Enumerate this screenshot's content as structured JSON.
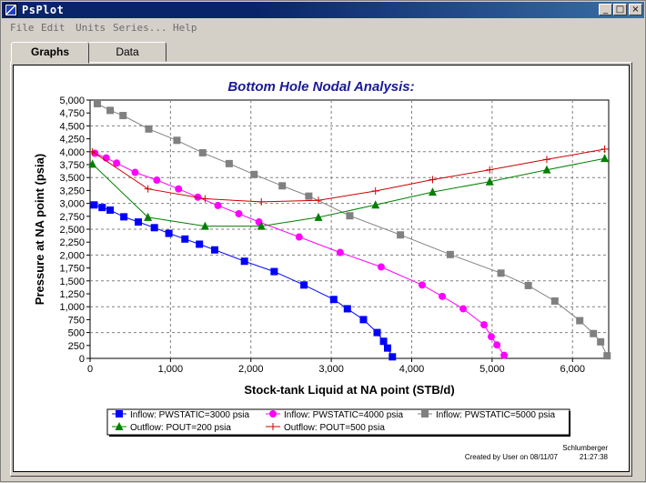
{
  "window": {
    "title": "PsPlot"
  },
  "menu": [
    "File",
    "Edit",
    "Units",
    "Series...",
    "Help"
  ],
  "tabs": [
    {
      "label": "Graphs",
      "active": true
    },
    {
      "label": "Data",
      "active": false
    }
  ],
  "footer": {
    "brand": "Schlumberger",
    "created": "Created by User on 08/11/07",
    "time": "21:27:38"
  },
  "chart_data": {
    "type": "line",
    "title": "Bottom Hole Nodal Analysis:",
    "xlabel": "Stock-tank Liquid at NA point (STB/d)",
    "ylabel": "Pressure at NA point (psia)",
    "xlim": [
      0,
      6450
    ],
    "ylim": [
      0,
      5000
    ],
    "xticks": [
      0,
      1000,
      2000,
      3000,
      4000,
      5000,
      6000
    ],
    "xtick_labels": [
      "0",
      "1,000",
      "2,000",
      "3,000",
      "4,000",
      "5,000",
      "6,000"
    ],
    "yticks": [
      0,
      250,
      500,
      750,
      1000,
      1250,
      1500,
      1750,
      2000,
      2250,
      2500,
      2750,
      3000,
      3250,
      3500,
      3750,
      4000,
      4250,
      4500,
      4750,
      5000
    ],
    "ytick_labels": [
      "0",
      "250",
      "500",
      "750",
      "1,000",
      "1,250",
      "1,500",
      "1,750",
      "2,000",
      "2,250",
      "2,500",
      "2,750",
      "3,000",
      "3,250",
      "3,500",
      "3,750",
      "4,000",
      "4,250",
      "4,500",
      "4,750",
      "5,000"
    ],
    "grid": true,
    "legend_position": "bottom",
    "series": [
      {
        "name": "Inflow: PWSTATIC=3000 psia",
        "color": "#0000ff",
        "marker": "square",
        "x": [
          50,
          150,
          250,
          420,
          600,
          800,
          980,
          1180,
          1360,
          1550,
          1920,
          2290,
          2660,
          3030,
          3200,
          3400,
          3570,
          3650,
          3700,
          3760
        ],
        "y": [
          2970,
          2920,
          2870,
          2740,
          2640,
          2530,
          2420,
          2310,
          2210,
          2100,
          1880,
          1680,
          1420,
          1140,
          960,
          750,
          500,
          330,
          200,
          30
        ]
      },
      {
        "name": "Inflow: PWSTATIC=4000 psia",
        "color": "#ff00ff",
        "marker": "circle",
        "x": [
          60,
          200,
          330,
          560,
          830,
          1100,
          1340,
          1590,
          1850,
          2100,
          2600,
          3110,
          3620,
          4130,
          4380,
          4640,
          4900,
          4990,
          5060,
          5150
        ],
        "y": [
          3970,
          3880,
          3780,
          3600,
          3450,
          3280,
          3120,
          2960,
          2800,
          2640,
          2350,
          2050,
          1770,
          1420,
          1200,
          960,
          650,
          420,
          260,
          60
        ]
      },
      {
        "name": "Inflow: PWSTATIC=5000 psia",
        "color": "#808080",
        "marker": "square",
        "x": [
          90,
          250,
          410,
          730,
          1080,
          1400,
          1730,
          2040,
          2390,
          2720,
          3230,
          3860,
          4480,
          5110,
          5450,
          5780,
          6090,
          6260,
          6350,
          6430
        ],
        "y": [
          4930,
          4800,
          4700,
          4440,
          4220,
          3980,
          3770,
          3560,
          3340,
          3140,
          2760,
          2390,
          2010,
          1650,
          1410,
          1110,
          730,
          480,
          320,
          50
        ]
      },
      {
        "name": "Outflow: POUT=200 psia",
        "color": "#008000",
        "marker": "triangle",
        "x": [
          30,
          720,
          1430,
          2130,
          2840,
          3550,
          4260,
          4970,
          5680,
          6400
        ],
        "y": [
          3760,
          2730,
          2560,
          2560,
          2730,
          2970,
          3220,
          3420,
          3650,
          3870
        ]
      },
      {
        "name": "Outflow: POUT=500 psia",
        "color": "#cc0000",
        "marker": "plus",
        "x": [
          30,
          720,
          1430,
          2130,
          2840,
          3550,
          4260,
          4970,
          5680,
          6400
        ],
        "y": [
          4000,
          3280,
          3090,
          3030,
          3060,
          3240,
          3460,
          3650,
          3850,
          4050
        ]
      }
    ]
  }
}
